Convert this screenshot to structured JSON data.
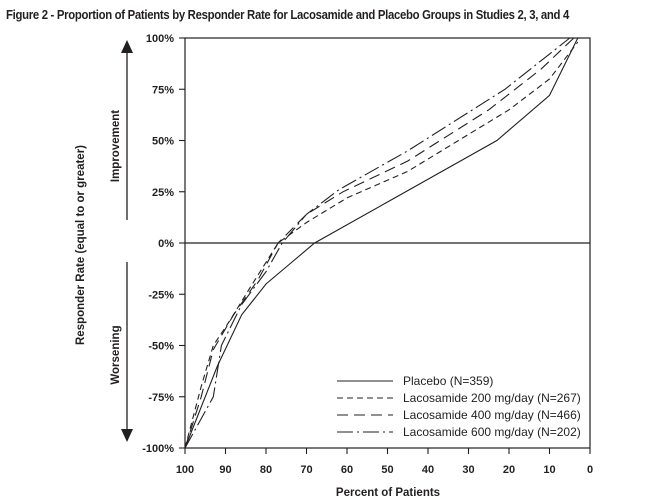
{
  "title": "Figure 2 - Proportion of Patients by Responder Rate for Lacosamide and Placebo Groups in Studies 2, 3, and 4",
  "annotations": {
    "up": "Improvement",
    "down": "Worsening"
  },
  "chart_data": {
    "type": "line",
    "title": "Figure 2 - Proportion of Patients by Responder Rate for Lacosamide and Placebo Groups in Studies 2, 3, and 4",
    "xlabel": "Percent of Patients",
    "ylabel": "Responder Rate (equal to or greater)",
    "xlim": [
      100,
      0
    ],
    "ylim": [
      -100,
      100
    ],
    "x_ticks": [
      "100",
      "90",
      "80",
      "70",
      "60",
      "50",
      "40",
      "30",
      "20",
      "10",
      "0"
    ],
    "x_tick_values": [
      100,
      90,
      80,
      70,
      60,
      50,
      40,
      30,
      20,
      10,
      0
    ],
    "y_ticks": [
      "100%",
      "75%",
      "50%",
      "25%",
      "0%",
      "-25%",
      "-50%",
      "-75%",
      "-100%"
    ],
    "y_tick_values": [
      100,
      75,
      50,
      25,
      0,
      -25,
      -50,
      -75,
      -100
    ],
    "grid": false,
    "reference_line_y": 0,
    "legend_position": "bottom-right",
    "series": [
      {
        "name": "Placebo (N=359)",
        "style": "solid",
        "x": [
          100,
          92,
          86,
          80,
          74,
          68,
          50,
          23,
          10,
          3
        ],
        "y": [
          -100,
          -60,
          -35,
          -20,
          -10,
          0,
          20,
          50,
          72,
          100
        ]
      },
      {
        "name": "Lacosamide 200 mg/day (N=267)",
        "style": "short-dash",
        "x": [
          100,
          96,
          93,
          89,
          84,
          77,
          70,
          60,
          45,
          20,
          10,
          3
        ],
        "y": [
          -100,
          -70,
          -50,
          -38,
          -22,
          0,
          10,
          22,
          35,
          65,
          80,
          98
        ]
      },
      {
        "name": "Lacosamide 400 mg/day (N=466)",
        "style": "long-dash",
        "x": [
          100,
          96,
          93,
          88,
          82,
          77,
          70,
          61,
          45,
          25,
          12,
          4
        ],
        "y": [
          -100,
          -75,
          -52,
          -35,
          -18,
          0,
          14,
          25,
          40,
          65,
          85,
          100
        ]
      },
      {
        "name": "Lacosamide 600 mg/day (N=202)",
        "style": "dash-dot",
        "x": [
          100,
          93,
          91,
          86,
          80,
          76,
          70,
          62,
          45,
          21,
          5
        ],
        "y": [
          -100,
          -75,
          -50,
          -30,
          -14,
          0,
          14,
          26,
          45,
          75,
          100
        ]
      }
    ]
  }
}
